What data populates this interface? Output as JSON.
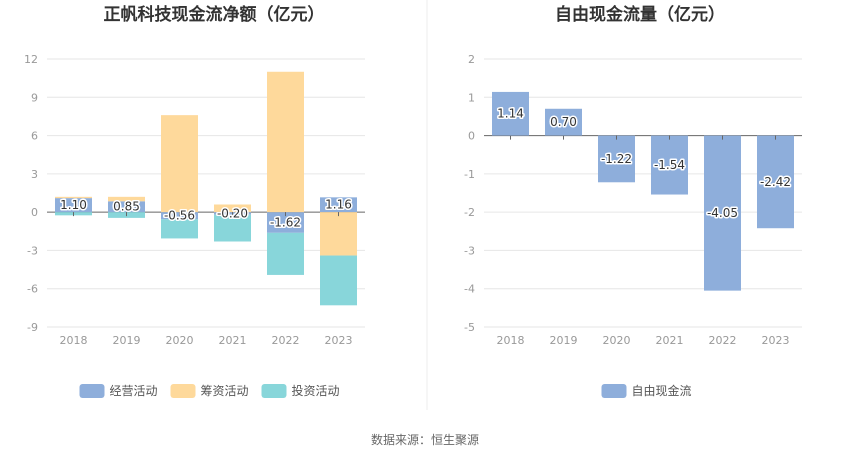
{
  "source_text": "数据来源：恒生聚源",
  "chart_data": [
    {
      "type": "bar",
      "stacked": true,
      "title": "正帆科技现金流净额（亿元）",
      "categories": [
        "2018",
        "2019",
        "2020",
        "2021",
        "2022",
        "2023"
      ],
      "ylim": [
        -9,
        12
      ],
      "yticks": [
        12,
        9,
        6,
        3,
        0,
        -3,
        -6,
        -9
      ],
      "grid": true,
      "legend_position": "bottom",
      "series": [
        {
          "name": "经营活动",
          "color": "#8eaedb",
          "values": [
            1.1,
            0.85,
            -0.56,
            -0.2,
            -1.62,
            1.16
          ]
        },
        {
          "name": "筹资活动",
          "color": "#fed99b",
          "values": [
            0.1,
            0.35,
            7.6,
            0.6,
            11.0,
            -3.4
          ]
        },
        {
          "name": "投资活动",
          "color": "#88d6da",
          "values": [
            -0.25,
            -0.45,
            -1.5,
            -2.1,
            -3.3,
            -3.9
          ]
        }
      ],
      "data_labels": [
        "1.10",
        "0.85",
        "-0.56",
        "-0.20",
        "-1.62",
        "1.16"
      ]
    },
    {
      "type": "bar",
      "title": "自由现金流量（亿元）",
      "categories": [
        "2018",
        "2019",
        "2020",
        "2021",
        "2022",
        "2023"
      ],
      "ylim": [
        -5,
        2
      ],
      "yticks": [
        2,
        1,
        0,
        -1,
        -2,
        -3,
        -4,
        -5
      ],
      "grid": true,
      "legend_position": "bottom",
      "series": [
        {
          "name": "自由现金流",
          "color": "#8eaedb",
          "values": [
            1.14,
            0.7,
            -1.22,
            -1.54,
            -4.05,
            -2.42
          ]
        }
      ],
      "data_labels": [
        "1.14",
        "0.70",
        "-1.22",
        "-1.54",
        "-4.05",
        "-2.42"
      ]
    }
  ]
}
